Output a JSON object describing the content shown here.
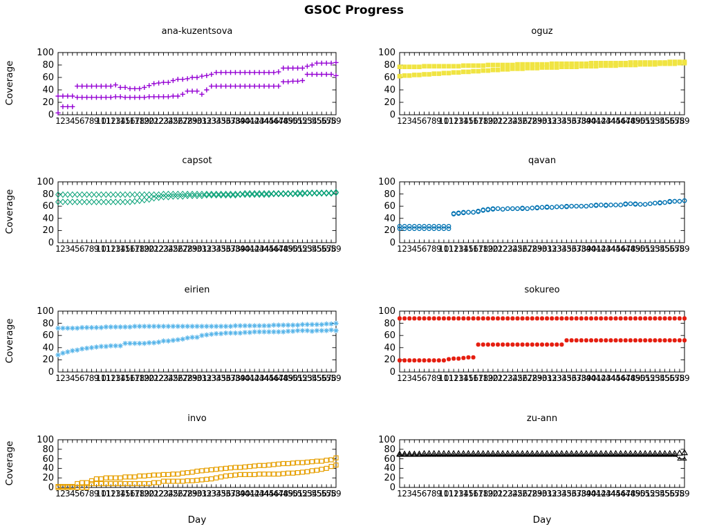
{
  "title": "GSOC Progress",
  "ylabel": "Coverage",
  "xlabel": "Day",
  "y_ticks": [
    100,
    80,
    60,
    40,
    20,
    0
  ],
  "x_ticks": [
    1,
    2,
    3,
    4,
    5,
    6,
    7,
    8,
    9,
    10,
    11,
    12,
    13,
    14,
    15,
    16,
    17,
    18,
    19,
    20,
    21,
    22,
    23,
    24,
    25,
    26,
    27,
    28,
    29,
    30,
    31,
    32,
    33,
    34,
    35,
    36,
    37,
    38,
    39,
    40,
    41,
    42,
    43,
    44,
    45,
    46,
    47,
    48,
    49,
    50,
    51,
    52,
    53,
    54,
    55,
    56,
    57,
    58,
    59
  ],
  "chart_data": [
    {
      "type": "scatter",
      "title": "ana-kuzentsova",
      "color": "#9400d3",
      "marker": "plus",
      "xlabel": "Day",
      "ylabel": "Coverage",
      "x_range": [
        1,
        59
      ],
      "y_range": [
        0,
        100
      ],
      "series": [
        {
          "name": "series-1",
          "values": [
            30,
            30,
            30,
            30,
            46,
            46,
            46,
            46,
            46,
            46,
            46,
            46,
            48,
            44,
            44,
            42,
            42,
            42,
            44,
            47,
            50,
            51,
            52,
            52,
            55,
            57,
            57,
            58,
            60,
            60,
            62,
            63,
            65,
            68,
            68,
            68,
            68,
            68,
            68,
            68,
            68,
            68,
            68,
            68,
            68,
            68,
            69,
            75,
            75,
            75,
            75,
            75,
            78,
            80,
            83,
            83,
            83,
            83,
            84
          ]
        },
        {
          "name": "series-2",
          "values": [
            3,
            13,
            13,
            13,
            28,
            28,
            28,
            28,
            28,
            28,
            28,
            28,
            29,
            29,
            28,
            28,
            28,
            28,
            28,
            29,
            29,
            29,
            29,
            29,
            30,
            30,
            33,
            38,
            38,
            38,
            33,
            40,
            46,
            46,
            46,
            46,
            46,
            46,
            46,
            46,
            46,
            46,
            46,
            46,
            46,
            46,
            46,
            53,
            53,
            54,
            54,
            55,
            65,
            65,
            65,
            65,
            65,
            65,
            63
          ]
        }
      ]
    },
    {
      "type": "scatter",
      "title": "oguz",
      "color": "#f0e442",
      "marker": "fsquare",
      "xlabel": "Day",
      "ylabel": "Coverage",
      "x_range": [
        1,
        59
      ],
      "y_range": [
        0,
        100
      ],
      "series": [
        {
          "name": "series-1",
          "values": [
            77,
            77,
            77,
            77,
            77,
            78,
            78,
            78,
            78,
            78,
            78,
            78,
            78,
            79,
            79,
            79,
            79,
            79,
            80,
            80,
            80,
            80,
            80,
            80,
            81,
            81,
            81,
            81,
            81,
            81,
            81,
            82,
            82,
            82,
            82,
            82,
            82,
            82,
            82,
            83,
            83,
            83,
            83,
            83,
            83,
            83,
            83,
            84,
            84,
            84,
            84,
            84,
            84,
            84,
            84,
            85,
            85,
            85,
            85
          ]
        },
        {
          "name": "series-2",
          "values": [
            62,
            63,
            63,
            64,
            64,
            65,
            65,
            66,
            66,
            67,
            67,
            68,
            68,
            69,
            69,
            70,
            70,
            71,
            71,
            72,
            72,
            73,
            73,
            74,
            74,
            74,
            75,
            75,
            75,
            76,
            76,
            76,
            76,
            77,
            77,
            77,
            77,
            78,
            78,
            78,
            78,
            79,
            79,
            79,
            79,
            80,
            80,
            80,
            80,
            81,
            81,
            81,
            81,
            82,
            82,
            82,
            82,
            83,
            83
          ]
        }
      ]
    },
    {
      "type": "scatter",
      "title": "capsot",
      "color": "#009e73",
      "marker": "diamond",
      "xlabel": "Day",
      "ylabel": "Coverage",
      "x_range": [
        1,
        59
      ],
      "y_range": [
        0,
        100
      ],
      "series": [
        {
          "name": "series-1",
          "values": [
            79,
            79,
            79,
            79,
            79,
            79,
            79,
            79,
            79,
            79,
            79,
            79,
            79,
            79,
            79,
            79,
            79,
            79,
            79,
            79,
            79,
            79,
            80,
            80,
            80,
            80,
            80,
            80,
            80,
            80,
            80,
            80,
            80,
            80,
            80,
            80,
            80,
            80,
            80,
            81,
            81,
            81,
            81,
            81,
            81,
            81,
            81,
            81,
            81,
            81,
            82,
            82,
            82,
            82,
            82,
            82,
            82,
            82,
            83
          ]
        },
        {
          "name": "series-2",
          "values": [
            67,
            67,
            67,
            67,
            67,
            67,
            67,
            67,
            67,
            67,
            67,
            67,
            67,
            67,
            67,
            67,
            68,
            69,
            70,
            71,
            73,
            74,
            75,
            75,
            76,
            76,
            76,
            77,
            77,
            77,
            77,
            78,
            78,
            78,
            78,
            78,
            78,
            78,
            79,
            79,
            79,
            79,
            79,
            79,
            79,
            80,
            80,
            80,
            80,
            80,
            80,
            80,
            81,
            81,
            81,
            81,
            81,
            81,
            82
          ]
        }
      ]
    },
    {
      "type": "scatter",
      "title": "qavan",
      "color": "#0072b2",
      "marker": "circle",
      "xlabel": "Day",
      "ylabel": "Coverage",
      "x_range": [
        1,
        59
      ],
      "y_range": [
        0,
        100
      ],
      "series": [
        {
          "name": "series-1",
          "values": [
            27,
            27,
            27,
            27,
            27,
            27,
            27,
            27,
            27,
            27,
            27,
            48,
            49,
            50,
            50,
            50,
            52,
            54,
            55,
            56,
            56,
            55,
            56,
            56,
            56,
            57,
            56,
            57,
            58,
            58,
            59,
            58,
            59,
            59,
            60,
            60,
            60,
            60,
            60,
            61,
            62,
            62,
            62,
            62,
            62,
            62,
            64,
            64,
            64,
            63,
            63,
            64,
            65,
            66,
            66,
            68,
            68,
            68,
            69
          ]
        },
        {
          "name": "series-2",
          "values": [
            23,
            23,
            23,
            23,
            23,
            23,
            23,
            23,
            23,
            23,
            23,
            47,
            48,
            49,
            50,
            50,
            51,
            53,
            54,
            55,
            56,
            55,
            56,
            56,
            56,
            56,
            56,
            57,
            57,
            58,
            58,
            58,
            59,
            59,
            59,
            60,
            60,
            60,
            60,
            61,
            61,
            62,
            61,
            62,
            62,
            62,
            63,
            64,
            63,
            63,
            63,
            64,
            65,
            65,
            66,
            67,
            68,
            68,
            69
          ]
        }
      ]
    },
    {
      "type": "scatter",
      "title": "eirien",
      "color": "#56b4e9",
      "marker": "asterisk",
      "xlabel": "Day",
      "ylabel": "Coverage",
      "x_range": [
        1,
        59
      ],
      "y_range": [
        0,
        100
      ],
      "series": [
        {
          "name": "series-1",
          "values": [
            72,
            72,
            72,
            72,
            72,
            73,
            73,
            73,
            73,
            73,
            74,
            74,
            74,
            74,
            74,
            74,
            75,
            75,
            75,
            75,
            75,
            75,
            75,
            75,
            75,
            75,
            75,
            75,
            75,
            75,
            75,
            75,
            75,
            75,
            75,
            75,
            75,
            76,
            76,
            76,
            76,
            76,
            76,
            76,
            76,
            77,
            77,
            77,
            77,
            77,
            77,
            78,
            78,
            78,
            78,
            78,
            79,
            79,
            80
          ]
        },
        {
          "name": "series-2",
          "values": [
            28,
            31,
            33,
            35,
            36,
            38,
            39,
            40,
            41,
            42,
            42,
            43,
            43,
            43,
            47,
            47,
            47,
            47,
            47,
            48,
            48,
            49,
            51,
            51,
            52,
            53,
            54,
            56,
            57,
            57,
            60,
            61,
            62,
            63,
            63,
            64,
            64,
            64,
            64,
            65,
            65,
            66,
            66,
            66,
            66,
            66,
            66,
            66,
            67,
            67,
            68,
            68,
            68,
            67,
            68,
            68,
            68,
            69,
            68
          ]
        }
      ]
    },
    {
      "type": "scatter",
      "title": "sokureo",
      "color": "#e51e10",
      "marker": "burst",
      "xlabel": "Day",
      "ylabel": "Coverage",
      "x_range": [
        1,
        59
      ],
      "y_range": [
        0,
        100
      ],
      "series": [
        {
          "name": "series-1",
          "values": [
            88,
            88,
            88,
            88,
            88,
            88,
            88,
            88,
            88,
            88,
            88,
            88,
            88,
            88,
            88,
            88,
            88,
            88,
            88,
            88,
            88,
            88,
            88,
            88,
            88,
            88,
            88,
            88,
            88,
            88,
            88,
            88,
            88,
            88,
            88,
            88,
            88,
            88,
            88,
            88,
            88,
            88,
            88,
            88,
            88,
            88,
            88,
            88,
            88,
            88,
            88,
            88,
            88,
            88,
            88,
            88,
            88,
            88,
            88
          ]
        },
        {
          "name": "series-2",
          "values": [
            19,
            19,
            19,
            19,
            19,
            19,
            19,
            19,
            19,
            19,
            21,
            22,
            22,
            23,
            24,
            24,
            45,
            45,
            45,
            45,
            45,
            45,
            45,
            45,
            45,
            45,
            45,
            45,
            45,
            45,
            45,
            45,
            45,
            45,
            52,
            52,
            52,
            52,
            52,
            52,
            52,
            52,
            52,
            52,
            52,
            52,
            52,
            52,
            52,
            52,
            52,
            52,
            52,
            52,
            52,
            52,
            52,
            52,
            52
          ]
        }
      ]
    },
    {
      "type": "scatter",
      "title": "invo",
      "color": "#e69f00",
      "marker": "square",
      "xlabel": "Day",
      "ylabel": "Coverage",
      "x_range": [
        1,
        59
      ],
      "y_range": [
        0,
        100
      ],
      "series": [
        {
          "name": "series-1",
          "values": [
            2,
            2,
            2,
            2,
            8,
            10,
            10,
            14,
            18,
            18,
            20,
            20,
            20,
            20,
            22,
            22,
            22,
            24,
            24,
            25,
            26,
            26,
            27,
            27,
            28,
            28,
            30,
            31,
            32,
            34,
            35,
            36,
            37,
            38,
            39,
            40,
            41,
            42,
            42,
            43,
            44,
            45,
            46,
            46,
            47,
            48,
            49,
            50,
            50,
            51,
            52,
            52,
            53,
            54,
            55,
            55,
            57,
            58,
            62
          ]
        },
        {
          "name": "series-2",
          "values": [
            0,
            0,
            0,
            0,
            0,
            0,
            0,
            8,
            8,
            8,
            8,
            8,
            8,
            8,
            8,
            8,
            8,
            8,
            8,
            8,
            10,
            10,
            13,
            13,
            13,
            13,
            13,
            14,
            14,
            15,
            16,
            17,
            18,
            20,
            22,
            24,
            25,
            26,
            27,
            27,
            27,
            27,
            28,
            28,
            28,
            28,
            28,
            29,
            30,
            30,
            31,
            32,
            33,
            35,
            36,
            38,
            40,
            44,
            47
          ]
        }
      ]
    },
    {
      "type": "scatter",
      "title": "zu-ann",
      "color": "#000000",
      "marker": "triangle",
      "xlabel": "Day",
      "ylabel": "Coverage",
      "x_range": [
        1,
        59
      ],
      "y_range": [
        0,
        100
      ],
      "series": [
        {
          "name": "series-1",
          "values": [
            70,
            70,
            70,
            70,
            70,
            71,
            71,
            71,
            71,
            71,
            71,
            71,
            71,
            71,
            71,
            71,
            71,
            71,
            71,
            71,
            71,
            71,
            71,
            71,
            71,
            71,
            71,
            71,
            71,
            71,
            71,
            71,
            71,
            71,
            71,
            71,
            71,
            71,
            71,
            71,
            71,
            71,
            71,
            71,
            71,
            71,
            71,
            71,
            71,
            71,
            71,
            71,
            71,
            71,
            71,
            71,
            71,
            72,
            73
          ]
        },
        {
          "name": "series-2",
          "marker": "triangle-small",
          "line": true,
          "values": [
            68,
            68,
            68,
            68,
            68,
            68,
            68,
            68,
            68,
            68,
            68,
            68,
            68,
            68,
            68,
            68,
            68,
            68,
            68,
            68,
            68,
            68,
            68,
            68,
            68,
            68,
            68,
            68,
            68,
            68,
            68,
            68,
            68,
            68,
            68,
            68,
            68,
            68,
            68,
            68,
            68,
            68,
            68,
            68,
            68,
            68,
            68,
            68,
            68,
            68,
            68,
            68,
            68,
            68,
            68,
            68,
            68,
            60,
            60
          ]
        }
      ]
    }
  ]
}
